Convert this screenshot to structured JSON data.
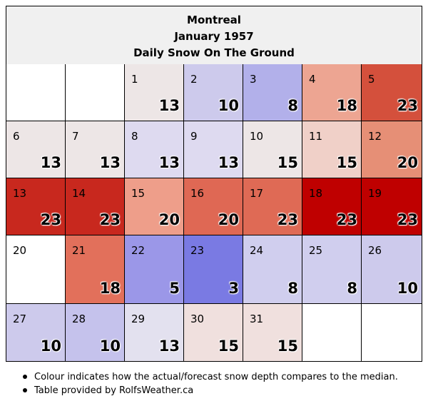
{
  "header": {
    "city": "Montreal",
    "month": "January 1957",
    "metric": "Daily Snow On The Ground"
  },
  "chart_data": {
    "type": "heatmap",
    "title": "Daily Snow On The Ground",
    "first_weekday_offset": 2,
    "days": [
      {
        "day": "1",
        "value": "13",
        "color": "#ede6e6"
      },
      {
        "day": "2",
        "value": "10",
        "color": "#cdcaec"
      },
      {
        "day": "3",
        "value": "8",
        "color": "#b2b0ea"
      },
      {
        "day": "4",
        "value": "18",
        "color": "#eda592"
      },
      {
        "day": "5",
        "value": "23",
        "color": "#d4503c"
      },
      {
        "day": "6",
        "value": "13",
        "color": "#ede6e6"
      },
      {
        "day": "7",
        "value": "13",
        "color": "#ede6e6"
      },
      {
        "day": "8",
        "value": "13",
        "color": "#dedaf0"
      },
      {
        "day": "9",
        "value": "13",
        "color": "#dedaf0"
      },
      {
        "day": "10",
        "value": "15",
        "color": "#ede6e6"
      },
      {
        "day": "11",
        "value": "15",
        "color": "#f0d0c8"
      },
      {
        "day": "12",
        "value": "20",
        "color": "#e68f76"
      },
      {
        "day": "13",
        "value": "23",
        "color": "#c8281e"
      },
      {
        "day": "14",
        "value": "23",
        "color": "#c8281e"
      },
      {
        "day": "15",
        "value": "20",
        "color": "#ee9e8a"
      },
      {
        "day": "16",
        "value": "20",
        "color": "#df6854"
      },
      {
        "day": "17",
        "value": "23",
        "color": "#df6a55"
      },
      {
        "day": "18",
        "value": "23",
        "color": "#bf0000"
      },
      {
        "day": "19",
        "value": "23",
        "color": "#bf0000"
      },
      {
        "day": "20",
        "value": "",
        "color": "#ffffff"
      },
      {
        "day": "21",
        "value": "18",
        "color": "#e2705b"
      },
      {
        "day": "22",
        "value": "5",
        "color": "#9b97e8"
      },
      {
        "day": "23",
        "value": "3",
        "color": "#7a7ae3"
      },
      {
        "day": "24",
        "value": "8",
        "color": "#d0ceee"
      },
      {
        "day": "25",
        "value": "8",
        "color": "#d0ceee"
      },
      {
        "day": "26",
        "value": "10",
        "color": "#cdcaec"
      },
      {
        "day": "27",
        "value": "10",
        "color": "#cdcaec"
      },
      {
        "day": "28",
        "value": "10",
        "color": "#c5c2ec"
      },
      {
        "day": "29",
        "value": "13",
        "color": "#e3e1ef"
      },
      {
        "day": "30",
        "value": "15",
        "color": "#f0e0de"
      },
      {
        "day": "31",
        "value": "15",
        "color": "#f0e0de"
      }
    ]
  },
  "notes": [
    "Colour indicates how the actual/forecast snow depth compares to the median.",
    "Table provided by RolfsWeather.ca"
  ]
}
